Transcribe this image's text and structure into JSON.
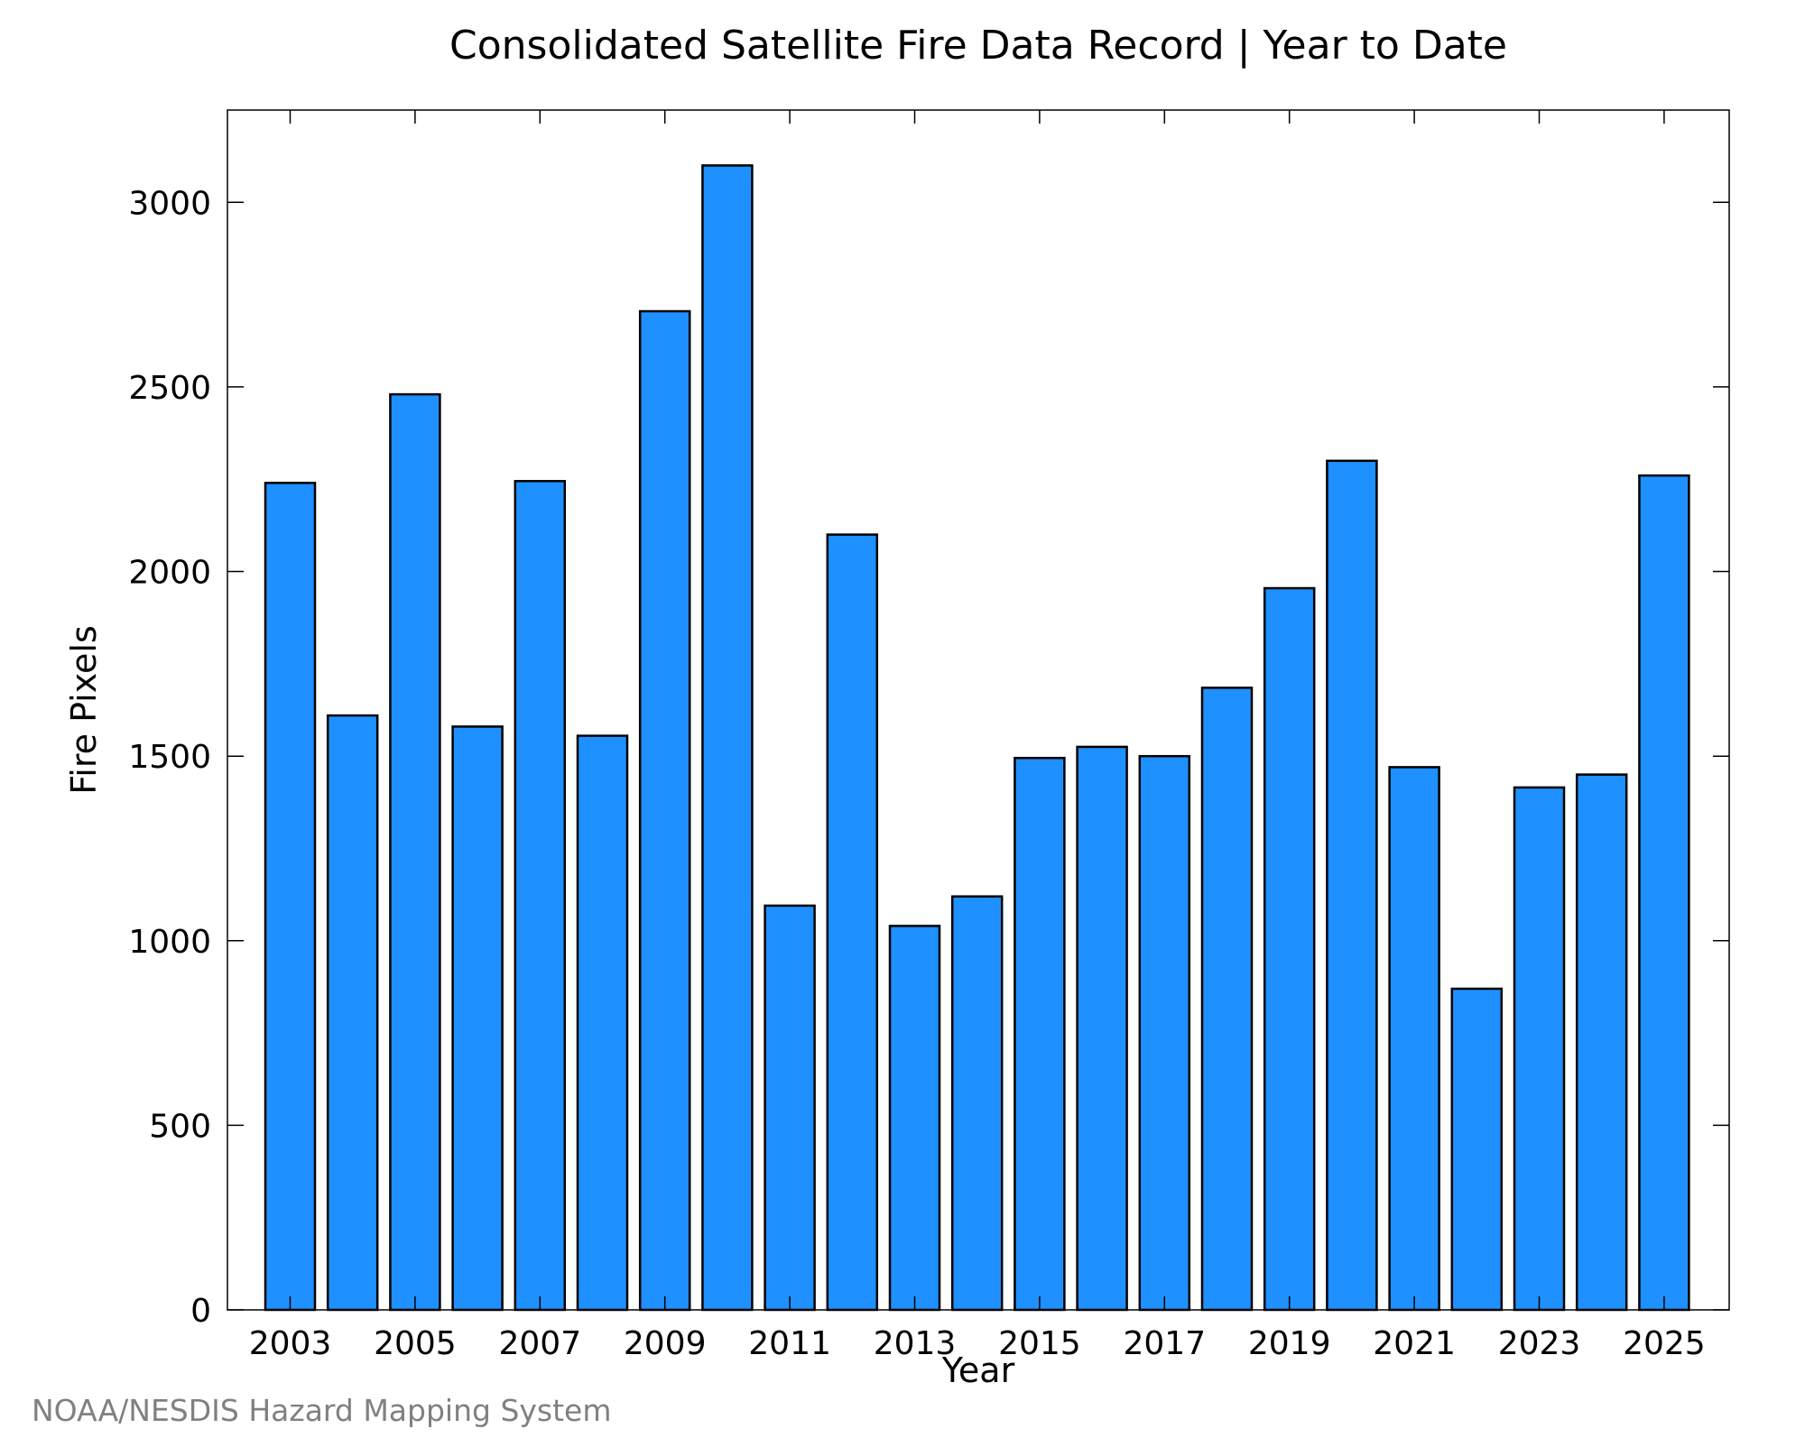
{
  "chart_data": {
    "type": "bar",
    "title": "Consolidated Satellite Fire Data Record | Year to Date",
    "xlabel": "Year",
    "ylabel": "Fire Pixels",
    "source": "NOAA/NESDIS Hazard Mapping System",
    "categories": [
      "2003",
      "2004",
      "2005",
      "2006",
      "2007",
      "2008",
      "2009",
      "2010",
      "2011",
      "2012",
      "2013",
      "2014",
      "2015",
      "2016",
      "2017",
      "2018",
      "2019",
      "2020",
      "2021",
      "2022",
      "2023",
      "2024",
      "2025"
    ],
    "values": [
      2240,
      1610,
      2480,
      1580,
      2245,
      1555,
      2705,
      3100,
      1095,
      2100,
      1040,
      1120,
      1495,
      1525,
      1500,
      1685,
      1955,
      2300,
      1470,
      870,
      1415,
      1450,
      2260
    ],
    "ylim": [
      0,
      3250
    ],
    "yticks": [
      0,
      500,
      1000,
      1500,
      2000,
      2500,
      3000
    ],
    "xtick_labels": [
      "2003",
      "2005",
      "2007",
      "2009",
      "2011",
      "2013",
      "2015",
      "2017",
      "2019",
      "2021",
      "2023",
      "2025"
    ],
    "bar_color": "#1e90ff",
    "edge_color": "#000000",
    "grid": false
  }
}
